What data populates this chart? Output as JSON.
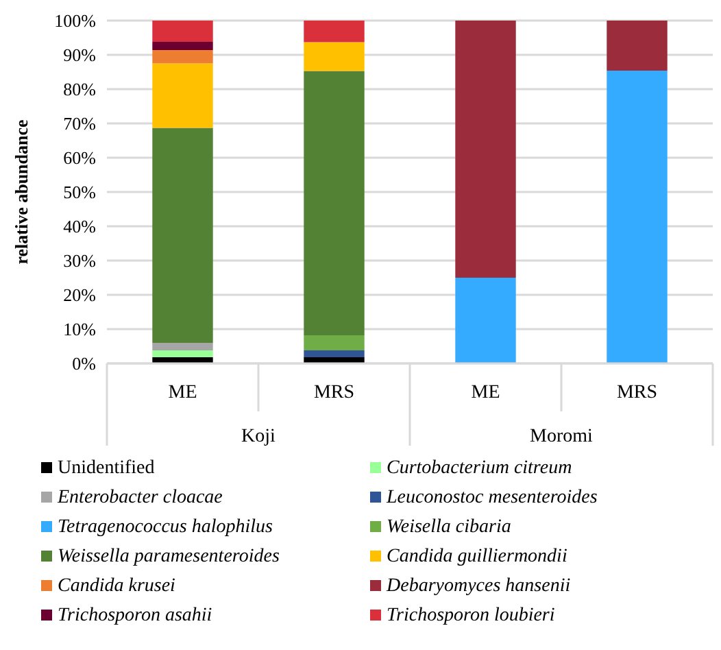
{
  "chart_data": {
    "type": "bar",
    "stacked": true,
    "ylabel": "relative abundance",
    "categories": [
      "ME",
      "MRS",
      "ME",
      "MRS"
    ],
    "annotations": [
      "Koji",
      "Moromi"
    ],
    "ylim": [
      0,
      100
    ],
    "yticks": [
      {
        "value": 0,
        "label": "0%"
      },
      {
        "value": 10,
        "label": "10%"
      },
      {
        "value": 20,
        "label": "20%"
      },
      {
        "value": 30,
        "label": "30%"
      },
      {
        "value": 40,
        "label": "40%"
      },
      {
        "value": 50,
        "label": "50%"
      },
      {
        "value": 60,
        "label": "60%"
      },
      {
        "value": 70,
        "label": "70%"
      },
      {
        "value": 80,
        "label": "80%"
      },
      {
        "value": 90,
        "label": "90%"
      },
      {
        "value": 100,
        "label": "100%"
      }
    ],
    "grid": "y",
    "legend": "bottom",
    "series": [
      {
        "name": "Unidentified",
        "color": "#000000",
        "values": [
          1.8,
          1.8,
          0,
          0
        ]
      },
      {
        "name": "Curtobacterium citreum",
        "color": "#99ff99",
        "values": [
          2,
          0,
          0,
          0
        ]
      },
      {
        "name": "Enterobacter cloacae",
        "color": "#a6a6a6",
        "values": [
          2.2,
          0,
          0,
          0
        ]
      },
      {
        "name": "Leuconostoc mesenteroides",
        "color": "#2f5597",
        "values": [
          0,
          2,
          0,
          0
        ]
      },
      {
        "name": "Tetragenococcus halophilus",
        "color": "#35abff",
        "values": [
          0,
          0,
          25,
          85.4
        ]
      },
      {
        "name": "Weisella cibaria",
        "color": "#70ad47",
        "values": [
          0,
          4.4,
          0,
          0
        ]
      },
      {
        "name": "Weissella paramesenteroides",
        "color": "#548235",
        "values": [
          62.7,
          77.1,
          0,
          0
        ]
      },
      {
        "name": "Candida guilliermondii",
        "color": "#ffc000",
        "values": [
          18.8,
          8.4,
          0,
          0
        ]
      },
      {
        "name": "Candida krusei",
        "color": "#ed7d31",
        "values": [
          3.9,
          0,
          0,
          0
        ]
      },
      {
        "name": "Debaryomyces hansenii",
        "color": "#9b2c3b",
        "values": [
          0,
          0,
          75,
          14.6
        ]
      },
      {
        "name": "Trichosporon asahii",
        "color": "#6b0030",
        "values": [
          2.4,
          0,
          0,
          0
        ]
      },
      {
        "name": "Trichosporon loubieri",
        "color": "#d9303c",
        "values": [
          6.2,
          6.3,
          0,
          0
        ]
      }
    ]
  }
}
